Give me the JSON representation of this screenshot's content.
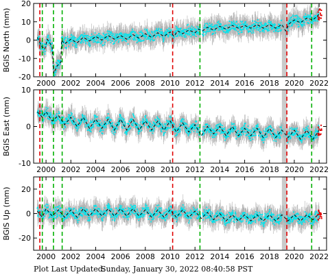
{
  "chart_data": [
    {
      "type": "scatter",
      "panel": "north",
      "ylabel": "BGIS North (mm)",
      "ylim": [
        -20,
        20
      ],
      "yticks": [
        -20,
        -10,
        0,
        10,
        20
      ],
      "xlim": [
        1999.0,
        2022.6
      ],
      "xticks": [
        "2000",
        "2002",
        "2004",
        "2006",
        "2008",
        "2010",
        "2012",
        "2014",
        "2016",
        "2018",
        "2020",
        "2022"
      ],
      "grid": false,
      "series": [
        {
          "color": "#b0b0b0",
          "values_note": "error bars"
        },
        {
          "color": "#00e5ee"
        },
        {
          "color": "#000000",
          "style": "dashed"
        },
        {
          "color": "#e00000"
        }
      ],
      "model_line": [
        [
          1999.3,
          1.5
        ],
        [
          1999.6,
          -3
        ],
        [
          1999.9,
          -5
        ],
        [
          2000.1,
          0.5
        ],
        [
          2000.35,
          -2
        ],
        [
          2000.5,
          -4
        ],
        [
          2000.62,
          -18
        ],
        [
          2000.9,
          -14
        ],
        [
          2001.2,
          -12
        ],
        [
          2001.25,
          0
        ],
        [
          2001.5,
          -2
        ],
        [
          2002,
          0.5
        ],
        [
          2002.5,
          -1.5
        ],
        [
          2003,
          1.5
        ],
        [
          2003.5,
          -0.5
        ],
        [
          2004,
          2
        ],
        [
          2004.5,
          0
        ],
        [
          2005,
          2.5
        ],
        [
          2005.5,
          0.5
        ],
        [
          2006,
          2.5
        ],
        [
          2006.5,
          0.5
        ],
        [
          2007,
          3
        ],
        [
          2007.5,
          1
        ],
        [
          2008,
          3.5
        ],
        [
          2008.5,
          1.5
        ],
        [
          2009,
          4
        ],
        [
          2009.5,
          2
        ],
        [
          2010,
          4.5
        ],
        [
          2010.3,
          2
        ],
        [
          2010.6,
          5
        ],
        [
          2011,
          3.5
        ],
        [
          2011.5,
          5.5
        ],
        [
          2012,
          4
        ],
        [
          2012.3,
          6
        ],
        [
          2012.6,
          5
        ],
        [
          2013,
          7
        ],
        [
          2013.5,
          5.5
        ],
        [
          2014,
          7.5
        ],
        [
          2014.5,
          6
        ],
        [
          2015,
          8
        ],
        [
          2015.5,
          6.5
        ],
        [
          2016,
          8
        ],
        [
          2016.5,
          6.5
        ],
        [
          2017,
          8.5
        ],
        [
          2017.5,
          6.5
        ],
        [
          2018,
          8.5
        ],
        [
          2018.5,
          6.5
        ],
        [
          2019,
          8.5
        ],
        [
          2019.3,
          5
        ],
        [
          2019.6,
          9
        ],
        [
          2020,
          11
        ],
        [
          2020.5,
          9.5
        ],
        [
          2021,
          12
        ],
        [
          2021.5,
          11
        ],
        [
          2022,
          14
        ]
      ],
      "breaks": {
        "red": [
          1999.5,
          2010.2,
          2019.4
        ],
        "green": [
          1999.7,
          2000.6,
          2001.3,
          2012.4,
          2021.4
        ]
      }
    },
    {
      "type": "scatter",
      "panel": "east",
      "ylabel": "BGIS East (mm)",
      "ylim": [
        -10,
        10
      ],
      "yticks": [
        -10,
        0,
        10
      ],
      "xlim": [
        1999.0,
        2022.6
      ],
      "xticks": [
        "2000",
        "2002",
        "2004",
        "2006",
        "2008",
        "2010",
        "2012",
        "2014",
        "2016",
        "2018",
        "2020",
        "2022"
      ],
      "grid": false,
      "model_line": [
        [
          1999.3,
          4
        ],
        [
          1999.7,
          2.5
        ],
        [
          2000,
          4
        ],
        [
          2000.5,
          1.5
        ],
        [
          2001,
          3
        ],
        [
          2001.5,
          0.5
        ],
        [
          2002,
          2.5
        ],
        [
          2002.5,
          0
        ],
        [
          2003,
          2.5
        ],
        [
          2003.5,
          -0.5
        ],
        [
          2004,
          2
        ],
        [
          2004.5,
          -0.5
        ],
        [
          2005,
          2
        ],
        [
          2005.5,
          -1
        ],
        [
          2006,
          2
        ],
        [
          2006.5,
          -1
        ],
        [
          2007,
          2
        ],
        [
          2007.5,
          -1
        ],
        [
          2008,
          1.5
        ],
        [
          2008.5,
          -1
        ],
        [
          2009,
          1.5
        ],
        [
          2009.5,
          -1
        ],
        [
          2010,
          1.5
        ],
        [
          2010.5,
          -1.5
        ],
        [
          2011,
          1
        ],
        [
          2011.5,
          -1.5
        ],
        [
          2012,
          0.5
        ],
        [
          2012.5,
          -2.5
        ],
        [
          2013,
          0
        ],
        [
          2013.5,
          -2
        ],
        [
          2014,
          0
        ],
        [
          2014.5,
          -2.5
        ],
        [
          2015,
          0
        ],
        [
          2015.5,
          -2.5
        ],
        [
          2016,
          -0.5
        ],
        [
          2016.5,
          -2.5
        ],
        [
          2017,
          -0.5
        ],
        [
          2017.5,
          -3
        ],
        [
          2018,
          -0.5
        ],
        [
          2018.5,
          -3
        ],
        [
          2019,
          -1
        ],
        [
          2019.5,
          -3
        ],
        [
          2020,
          -1
        ],
        [
          2020.5,
          -3.5
        ],
        [
          2021,
          -1
        ],
        [
          2021.5,
          -3.5
        ],
        [
          2022,
          -1
        ]
      ],
      "breaks": {
        "red": [
          1999.5,
          2010.2,
          2019.4
        ],
        "green": [
          1999.7,
          2000.6,
          2001.3,
          2012.4,
          2021.4
        ]
      }
    },
    {
      "type": "scatter",
      "panel": "up",
      "ylabel": "BGIS Up (mm)",
      "ylim": [
        -30,
        30
      ],
      "yticks": [
        -20,
        0,
        20
      ],
      "xlim": [
        1999.0,
        2022.6
      ],
      "xticks": [
        "2000",
        "2002",
        "2004",
        "2006",
        "2008",
        "2010",
        "2012",
        "2014",
        "2016",
        "2018",
        "2020",
        "2022"
      ],
      "grid": false,
      "model_line": [
        [
          1999.3,
          2
        ],
        [
          1999.7,
          -3
        ],
        [
          2000,
          4
        ],
        [
          2000.5,
          -2
        ],
        [
          2001,
          3
        ],
        [
          2001.5,
          -3
        ],
        [
          2002,
          3
        ],
        [
          2002.5,
          -3
        ],
        [
          2003,
          4
        ],
        [
          2003.5,
          -2
        ],
        [
          2004,
          4
        ],
        [
          2004.5,
          -2
        ],
        [
          2005,
          4
        ],
        [
          2005.5,
          -2
        ],
        [
          2006,
          4
        ],
        [
          2006.5,
          -2
        ],
        [
          2007,
          4
        ],
        [
          2007.5,
          -2
        ],
        [
          2008,
          3
        ],
        [
          2008.5,
          -3
        ],
        [
          2009,
          3
        ],
        [
          2009.5,
          -3
        ],
        [
          2010,
          3
        ],
        [
          2010.5,
          -3
        ],
        [
          2011,
          3
        ],
        [
          2011.5,
          -3
        ],
        [
          2012,
          2
        ],
        [
          2012.5,
          -4
        ],
        [
          2013,
          1
        ],
        [
          2013.5,
          -5
        ],
        [
          2014,
          0
        ],
        [
          2014.5,
          -6
        ],
        [
          2015,
          -1
        ],
        [
          2015.5,
          -6
        ],
        [
          2016,
          -1
        ],
        [
          2016.5,
          -6
        ],
        [
          2017,
          -1
        ],
        [
          2017.5,
          -6
        ],
        [
          2018,
          -1
        ],
        [
          2018.5,
          -6
        ],
        [
          2019,
          -1
        ],
        [
          2019.5,
          -6
        ],
        [
          2020,
          -1
        ],
        [
          2020.5,
          -6
        ],
        [
          2021,
          -1
        ],
        [
          2021.5,
          -5
        ],
        [
          2022,
          0
        ]
      ],
      "breaks": {
        "red": [
          1999.5,
          2010.2,
          2019.4
        ],
        "green": [
          1999.7,
          2000.6,
          2001.3,
          2012.4,
          2021.4
        ]
      }
    }
  ],
  "footer": {
    "label": "Plot Last Updated:",
    "timestamp": "Sunday, January 30, 2022 08:40:58 PST"
  }
}
